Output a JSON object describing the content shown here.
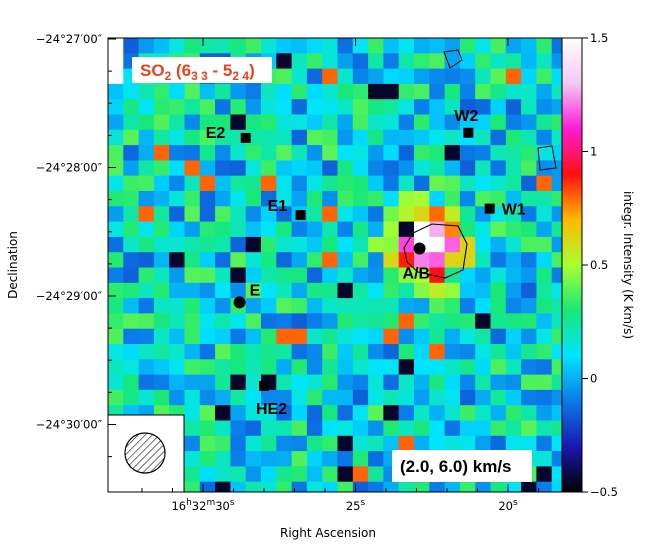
{
  "chart_data": {
    "type": "heatmap",
    "title": "SO2 (6 3 3 - 5 2 4)",
    "velocity_range_label": "(2.0, 6.0) km/s",
    "xlabel": "Right Ascension",
    "ylabel": "Declination",
    "x_ticks": [
      {
        "label": "16h32m30s",
        "ra_sec": 30
      },
      {
        "label": "25s",
        "ra_sec": 25
      },
      {
        "label": "20s",
        "ra_sec": 20
      }
    ],
    "y_ticks": [
      {
        "label": "−24°27′00″",
        "dec_arcmin": -27
      },
      {
        "label": "−24°28′00″",
        "dec_arcmin": -28
      },
      {
        "label": "−24°29′00″",
        "dec_arcmin": -29
      },
      {
        "label": "−24°30′00″",
        "dec_arcmin": -30
      }
    ],
    "colorbar": {
      "label": "integr. Intensity (K km/s)",
      "range": [
        -0.5,
        1.5
      ],
      "ticks": [
        "−0.5",
        "0",
        "0.5",
        "1",
        "1.5"
      ],
      "tick_values": [
        -0.5,
        0,
        0.5,
        1,
        1.5
      ],
      "colormap": [
        "#000000",
        "#1818b0",
        "#0a7ae8",
        "#00e4ff",
        "#18e878",
        "#a8ff30",
        "#ffb800",
        "#ff1010",
        "#ff1ad6",
        "#f2c9f2",
        "#ffffff"
      ]
    },
    "sources": [
      {
        "name": "E2",
        "marker": "square",
        "ra_sec": 28.6,
        "dec_arcmin": -27.77
      },
      {
        "name": "W2",
        "marker": "square",
        "ra_sec": 21.3,
        "dec_arcmin": -27.73
      },
      {
        "name": "E1",
        "marker": "square",
        "ra_sec": 26.8,
        "dec_arcmin": -28.37
      },
      {
        "name": "W1",
        "marker": "square",
        "ra_sec": 20.6,
        "dec_arcmin": -28.32
      },
      {
        "name": "A/B",
        "marker": "circle",
        "ra_sec": 22.9,
        "dec_arcmin": -28.63
      },
      {
        "name": "E",
        "marker": "circle",
        "ra_sec": 28.8,
        "dec_arcmin": -29.05
      },
      {
        "name": "HE2",
        "marker": "square",
        "ra_sec": 28.0,
        "dec_arcmin": -29.7
      }
    ],
    "grid": false,
    "beam": "hatched circle, bottom-left"
  }
}
